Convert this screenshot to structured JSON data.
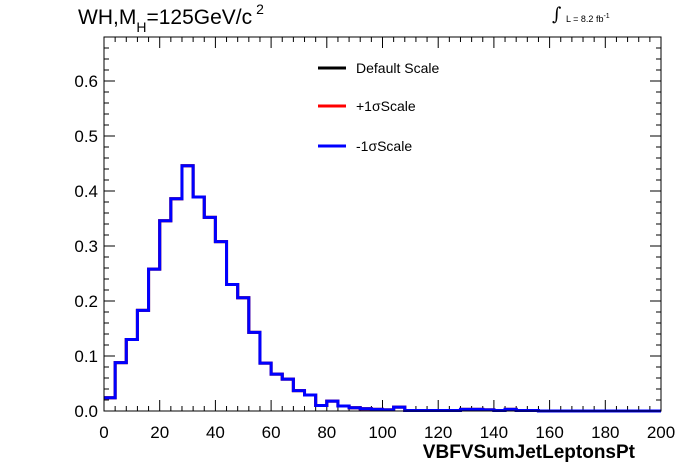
{
  "header": {
    "title_main": "WH,M",
    "title_sub": "H",
    "title_rest": "=125GeV/c",
    "title_sup": "2",
    "lumi_integral": "∫",
    "lumi_text": "L = 8.2 fb",
    "lumi_sup": "-1"
  },
  "chart_data": {
    "type": "line",
    "title": "WH,MH=125GeV/c2",
    "xlabel": "VBFVSumJetLeptonsPt",
    "ylabel": "",
    "xlim": [
      0,
      200
    ],
    "ylim": [
      0,
      0.68
    ],
    "x_ticks": [
      0,
      20,
      40,
      60,
      80,
      100,
      120,
      140,
      160,
      180,
      200
    ],
    "y_ticks": [
      0.0,
      0.1,
      0.2,
      0.3,
      0.4,
      0.5,
      0.6
    ],
    "x_tick_labels": [
      "0",
      "20",
      "40",
      "60",
      "80",
      "100",
      "120",
      "140",
      "160",
      "180",
      "200"
    ],
    "y_tick_labels": [
      "0.0",
      "0.1",
      "0.2",
      "0.3",
      "0.4",
      "0.5",
      "0.6"
    ],
    "bin_width": 4,
    "legend_position": "top-right",
    "grid": false,
    "series": [
      {
        "name": "Default Scale",
        "color": "#000000",
        "values": [
          0.024,
          0.088,
          0.13,
          0.183,
          0.258,
          0.346,
          0.386,
          0.446,
          0.389,
          0.352,
          0.308,
          0.23,
          0.206,
          0.143,
          0.087,
          0.067,
          0.058,
          0.037,
          0.029,
          0.01,
          0.018,
          0.009,
          0.006,
          0.004,
          0.003,
          0.002,
          0.007,
          0.001,
          0.001,
          0.001,
          0.001,
          0.001,
          0.003,
          0.003,
          0.002,
          0.001,
          0.003,
          0.001,
          0.001,
          0.0,
          0.0,
          0.0,
          0.0,
          0.0,
          0.0,
          0.0,
          0.0,
          0.0,
          0.0,
          0.0
        ]
      },
      {
        "name": "+1σScale",
        "color": "#ff0000",
        "values": [
          0.024,
          0.088,
          0.13,
          0.183,
          0.258,
          0.346,
          0.386,
          0.446,
          0.389,
          0.352,
          0.308,
          0.23,
          0.206,
          0.143,
          0.087,
          0.067,
          0.058,
          0.037,
          0.029,
          0.01,
          0.018,
          0.009,
          0.006,
          0.004,
          0.003,
          0.002,
          0.007,
          0.001,
          0.001,
          0.001,
          0.001,
          0.001,
          0.003,
          0.003,
          0.002,
          0.001,
          0.003,
          0.001,
          0.001,
          0.0,
          0.0,
          0.0,
          0.0,
          0.0,
          0.0,
          0.0,
          0.0,
          0.0,
          0.0,
          0.0
        ]
      },
      {
        "name": "-1σScale",
        "color": "#0000ff",
        "values": [
          0.024,
          0.088,
          0.13,
          0.183,
          0.258,
          0.346,
          0.386,
          0.446,
          0.389,
          0.352,
          0.308,
          0.23,
          0.206,
          0.143,
          0.087,
          0.067,
          0.058,
          0.037,
          0.029,
          0.01,
          0.018,
          0.009,
          0.006,
          0.004,
          0.003,
          0.002,
          0.007,
          0.001,
          0.001,
          0.001,
          0.001,
          0.001,
          0.003,
          0.003,
          0.002,
          0.001,
          0.003,
          0.001,
          0.001,
          0.0,
          0.0,
          0.0,
          0.0,
          0.0,
          0.0,
          0.0,
          0.0,
          0.0,
          0.0,
          0.0
        ]
      }
    ]
  }
}
